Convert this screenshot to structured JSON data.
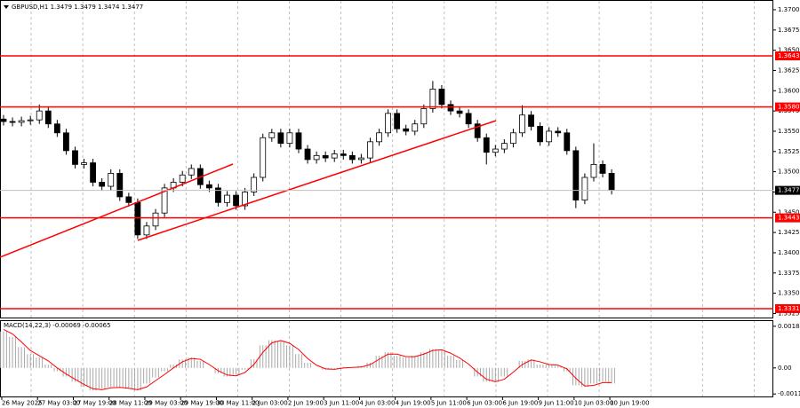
{
  "chart_data": [
    {
      "type": "candlestick",
      "title": "GBPUSD,H1  1.3479 1.3479 1.3474 1.3477",
      "categories": [
        "26 May 2025",
        null,
        null,
        null,
        "27 May 03:00",
        null,
        null,
        null,
        "27 May 19:00",
        null,
        null,
        null,
        "28 May 11:00",
        null,
        null,
        null,
        "29 May 03:00",
        null,
        null,
        null,
        "29 May 19:00",
        null,
        null,
        null,
        "30 May 11:00",
        null,
        null,
        null,
        "2 Jun 03:00",
        null,
        null,
        null,
        "2 Jun 19:00",
        null,
        null,
        null,
        "3 Jun 11:00",
        null,
        null,
        null,
        "4 Jun 03:00",
        null,
        null,
        null,
        "4 Jun 19:00",
        null,
        null,
        null,
        "5 Jun 11:00",
        null,
        null,
        null,
        "6 Jun 03:00",
        null,
        null,
        null,
        "6 Jun 19:00",
        null,
        null,
        null,
        "9 Jun 11:00",
        null,
        null,
        null,
        "10 Jun 03:00",
        null,
        null,
        null,
        "10 Jun 19:00"
      ],
      "open": [
        1.3565,
        1.3562,
        1.3561,
        1.3563,
        1.3564,
        1.3575,
        1.3559,
        1.3548,
        1.3526,
        1.3509,
        1.3511,
        1.3487,
        1.3482,
        1.3498,
        1.3469,
        1.3462,
        1.3422,
        1.3433,
        1.3449,
        1.348,
        1.3487,
        1.3496,
        1.3504,
        1.3484,
        1.348,
        1.3462,
        1.3471,
        1.3458,
        1.3475,
        1.3493,
        1.3542,
        1.3548,
        1.3535,
        1.3548,
        1.3528,
        1.3515,
        1.352,
        1.3517,
        1.3522,
        1.352,
        1.3515,
        1.3517,
        1.3537,
        1.3548,
        1.3572,
        1.3553,
        1.355,
        1.3559,
        1.3578,
        1.3602,
        1.3583,
        1.3575,
        1.3572,
        1.3559,
        1.3542,
        1.3524,
        1.3528,
        1.3535,
        1.3548,
        1.357,
        1.3556,
        1.3537,
        1.355,
        1.3548,
        1.3526,
        1.3465,
        1.3493,
        1.3509,
        1.3498
      ],
      "high": [
        1.357,
        1.3567,
        1.3568,
        1.3569,
        1.3583,
        1.358,
        1.3564,
        1.3553,
        1.3531,
        1.3516,
        1.3516,
        1.3492,
        1.3503,
        1.3503,
        1.3474,
        1.3467,
        1.3438,
        1.3454,
        1.3485,
        1.3492,
        1.3501,
        1.3509,
        1.3509,
        1.3489,
        1.3485,
        1.3476,
        1.3476,
        1.348,
        1.3498,
        1.3547,
        1.3553,
        1.3553,
        1.3553,
        1.3553,
        1.3533,
        1.3525,
        1.3525,
        1.3527,
        1.3527,
        1.3525,
        1.3522,
        1.3542,
        1.3553,
        1.3577,
        1.3577,
        1.3558,
        1.3564,
        1.3583,
        1.3612,
        1.3607,
        1.3588,
        1.358,
        1.3577,
        1.3564,
        1.3547,
        1.3533,
        1.354,
        1.3553,
        1.3582,
        1.3575,
        1.3561,
        1.3555,
        1.3555,
        1.3553,
        1.3531,
        1.3498,
        1.3535,
        1.3514,
        1.3503
      ],
      "low": [
        1.3557,
        1.3556,
        1.3556,
        1.3558,
        1.3559,
        1.3554,
        1.3543,
        1.3521,
        1.3504,
        1.3504,
        1.3482,
        1.3477,
        1.3477,
        1.3464,
        1.3457,
        1.3417,
        1.3417,
        1.3428,
        1.3444,
        1.3475,
        1.3482,
        1.3491,
        1.3479,
        1.3475,
        1.3457,
        1.3457,
        1.3453,
        1.3453,
        1.347,
        1.3488,
        1.3537,
        1.353,
        1.353,
        1.3523,
        1.351,
        1.351,
        1.3512,
        1.3512,
        1.3515,
        1.351,
        1.351,
        1.3512,
        1.3532,
        1.3543,
        1.3548,
        1.3545,
        1.3545,
        1.3554,
        1.3573,
        1.3578,
        1.357,
        1.3567,
        1.3554,
        1.3537,
        1.3509,
        1.3519,
        1.3523,
        1.353,
        1.3543,
        1.3551,
        1.3532,
        1.3532,
        1.3543,
        1.3521,
        1.3455,
        1.346,
        1.3488,
        1.3493,
        1.3472
      ],
      "close": [
        1.3562,
        1.3561,
        1.3563,
        1.3564,
        1.3575,
        1.3559,
        1.3548,
        1.3526,
        1.3509,
        1.3511,
        1.3487,
        1.3482,
        1.3498,
        1.3469,
        1.3462,
        1.3422,
        1.3433,
        1.3449,
        1.348,
        1.3487,
        1.3496,
        1.3504,
        1.3484,
        1.348,
        1.3462,
        1.3471,
        1.3458,
        1.3475,
        1.3493,
        1.3542,
        1.3548,
        1.3535,
        1.3548,
        1.3528,
        1.3515,
        1.352,
        1.3517,
        1.3522,
        1.352,
        1.3515,
        1.3517,
        1.3537,
        1.3548,
        1.3572,
        1.3553,
        1.355,
        1.3559,
        1.3578,
        1.3602,
        1.3583,
        1.3575,
        1.3572,
        1.3559,
        1.3542,
        1.3524,
        1.3528,
        1.3535,
        1.3548,
        1.357,
        1.3556,
        1.3537,
        1.355,
        1.3548,
        1.3526,
        1.3465,
        1.3493,
        1.3509,
        1.3498,
        1.3477
      ],
      "ylim": [
        1.332,
        1.3712
      ],
      "yticks": [
        {
          "value": 1.37,
          "label": "1.3700"
        },
        1.3675,
        {
          "value": 1.365,
          "label": "1.3650"
        },
        1.3625,
        {
          "value": 1.36,
          "label": "1.3600"
        },
        1.3575,
        {
          "value": 1.355,
          "label": "1.3550"
        },
        1.3525,
        {
          "value": 1.35,
          "label": "1.3500"
        },
        1.3475,
        {
          "value": 1.345,
          "label": "1.3450"
        },
        1.3425,
        {
          "value": 1.34,
          "label": "1.3400"
        },
        1.3375,
        {
          "value": 1.335,
          "label": "1.3350"
        },
        1.3325
      ],
      "levels": [
        1.3643,
        {
          "value": 1.358,
          "label": "1.3580"
        },
        1.3443,
        1.3331
      ],
      "level_color": "#ff0000",
      "last_price": 1.3477
    },
    {
      "type": "bar",
      "title": "MACD(14,22,3) -0.00069 -0.00065",
      "series": [
        {
          "type": "bar",
          "color": "#a8a8a8",
          "values": [
            0.00161,
            0.00138,
            0.00092,
            0.00061,
            0.00046,
            0.00015,
            -0.00015,
            -0.00038,
            -0.00061,
            -0.00084,
            -0.001,
            -0.00092,
            -0.00084,
            -0.00088,
            -0.00092,
            -0.001,
            -0.00069,
            -0.00042,
            -0.00015,
            0.00015,
            0.00038,
            0.00046,
            0.00031,
            0,
            -0.00023,
            -0.00038,
            -0.00031,
            -8e-05,
            0.00038,
            0.001,
            0.00123,
            0.00119,
            0.001,
            0.00061,
            0.00023,
            0,
            -8e-05,
            -4e-05,
            4e-05,
            0,
            8e-05,
            0.00023,
            0.00054,
            0.00069,
            0.00054,
            0.00046,
            0.00054,
            0.00069,
            0.00084,
            0.00077,
            0.00054,
            0.00035,
            0,
            -0.00038,
            -0.00061,
            -0.00061,
            -0.00038,
            0,
            0.00031,
            0.00038,
            0.00015,
            0.00015,
            8e-05,
            -0.00015,
            -0.00077,
            -0.00084,
            -0.00069,
            -0.00061,
            -0.00069
          ]
        },
        {
          "type": "line",
          "color": "#ff0000",
          "values": [
            0.0017,
            0.0015,
            0.00115,
            0.00077,
            0.00054,
            0.00031,
            0,
            -0.00027,
            -0.0005,
            -0.00073,
            -0.00092,
            -0.00096,
            -0.00088,
            -0.00086,
            -0.0009,
            -0.00096,
            -0.00084,
            -0.00056,
            -0.00029,
            0,
            0.00027,
            0.00042,
            0.00038,
            0.00015,
            -0.00012,
            -0.00031,
            -0.00035,
            -0.0002,
            0.00015,
            0.00069,
            0.00111,
            0.00121,
            0.00109,
            0.00081,
            0.00042,
            0.00012,
            -4e-05,
            -6e-05,
            0,
            2e-05,
            4e-05,
            0.00015,
            0.00038,
            0.00061,
            0.00061,
            0.0005,
            0.0005,
            0.00061,
            0.00077,
            0.0008,
            0.00065,
            0.00044,
            0.00017,
            -0.00019,
            -0.0005,
            -0.00061,
            -0.0005,
            -0.00019,
            0.00015,
            0.00035,
            0.00027,
            0.00015,
            0.00012,
            -4e-05,
            -0.00046,
            -0.0008,
            -0.00077,
            -0.00065,
            -0.00065
          ]
        }
      ],
      "ylim": [
        -0.0013,
        0.00207
      ],
      "yticks": [
        0.00184,
        {
          "value": 0,
          "label": "0.00"
        },
        -0.00115
      ]
    }
  ]
}
